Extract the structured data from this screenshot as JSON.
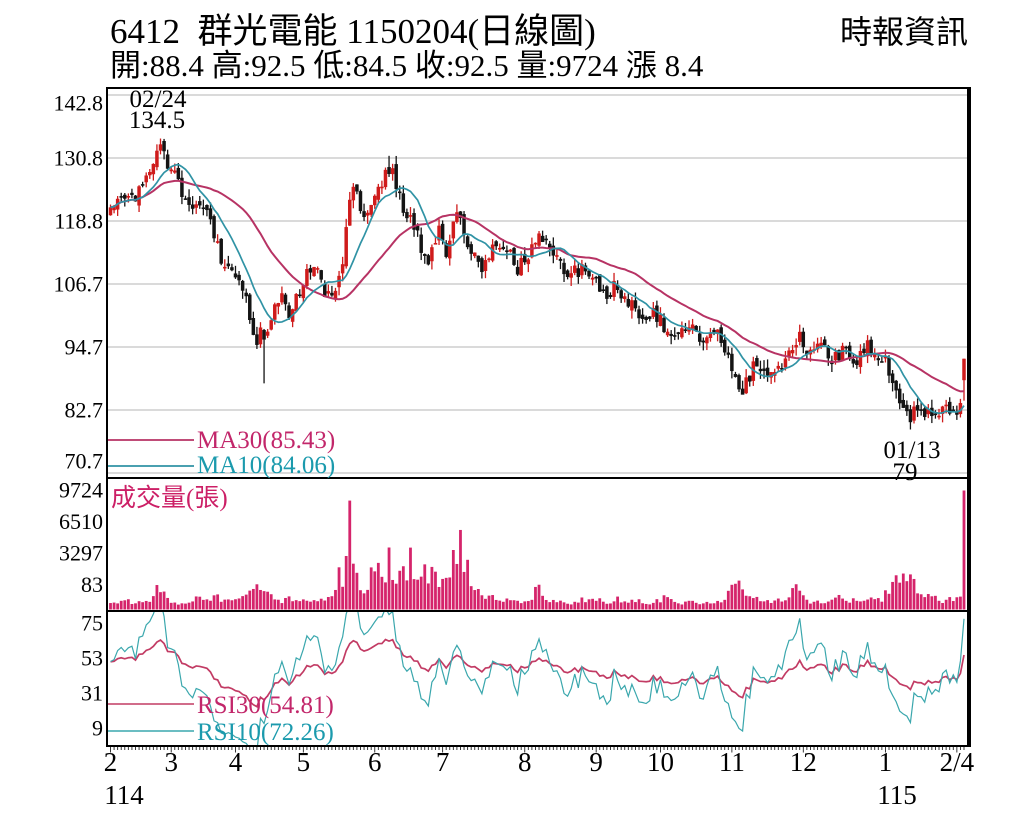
{
  "header": {
    "title": "6412  群光電能 1150204(日線圖)",
    "source": "時報資訊",
    "summary": "開:88.4 高:92.5 低:84.5 收:92.5 量:9724 漲 8.4"
  },
  "colors": {
    "up_candle": "#cf1b1b",
    "down_candle": "#141414",
    "ma30": "#b73364",
    "ma10": "#3093a5",
    "ma30_text": "#c2266a",
    "ma10_text": "#1b9aad",
    "volume_bar": "#d5246b",
    "volume_title": "#cc1f66",
    "rsi30": "#c23b64",
    "rsi10": "#3aa7ad",
    "grid": "#c4c4c4",
    "border": "#000000"
  },
  "chart_data": [
    {
      "type": "candlestick",
      "title": "6412 群光電能 1150204(日線圖)",
      "y_ticks": [
        142.8,
        130.8,
        118.8,
        106.7,
        94.7,
        82.7,
        70.7
      ],
      "x_axis": {
        "month_labels": [
          "2",
          "3",
          "4",
          "5",
          "6",
          "7",
          "8",
          "9",
          "10",
          "11",
          "12",
          "1",
          "2/4"
        ],
        "month_start_days": [
          0,
          17,
          35,
          54,
          74,
          93,
          116,
          136,
          154,
          174,
          194,
          217,
          237
        ],
        "total_days": 240,
        "year_labels": [
          {
            "text": "114",
            "under_month_index": 0
          },
          {
            "text": "115",
            "under_month_index": 11
          }
        ]
      },
      "overlays": [
        {
          "name": "MA30",
          "legend": "MA30(85.43)",
          "window": 30
        },
        {
          "name": "MA10",
          "legend": "MA10(84.06)",
          "window": 10
        }
      ],
      "annotations": [
        {
          "date": "02/24",
          "price": "134.5",
          "day": 14
        },
        {
          "date": "01/13",
          "price": "79",
          "day": 224
        }
      ],
      "last_candle": {
        "open": 88.4,
        "high": 92.5,
        "low": 84.5,
        "close": 92.5
      },
      "high_overrides": {
        "14": 134.5,
        "78": 131.2,
        "193": 99.0,
        "212": 97.0
      },
      "low_overrides": {
        "43": 87.8,
        "177": 86.0,
        "224": 79.0
      },
      "price_anchors": [
        [
          0,
          122
        ],
        [
          3,
          124.5
        ],
        [
          6,
          123
        ],
        [
          9,
          126
        ],
        [
          12,
          128.5
        ],
        [
          14,
          133
        ],
        [
          16,
          129.5
        ],
        [
          18,
          127
        ],
        [
          20,
          123.5
        ],
        [
          22,
          121
        ],
        [
          24,
          123
        ],
        [
          26,
          122
        ],
        [
          28,
          118
        ],
        [
          30,
          113.5
        ],
        [
          32,
          110
        ],
        [
          34,
          108
        ],
        [
          36,
          106.5
        ],
        [
          38,
          103
        ],
        [
          40,
          98.5
        ],
        [
          41,
          96
        ],
        [
          42,
          97.5
        ],
        [
          43,
          95.5
        ],
        [
          44,
          99
        ],
        [
          46,
          102
        ],
        [
          48,
          103.5
        ],
        [
          50,
          101
        ],
        [
          52,
          104
        ],
        [
          54,
          107.5
        ],
        [
          56,
          110
        ],
        [
          58,
          108.5
        ],
        [
          60,
          105
        ],
        [
          62,
          104.5
        ],
        [
          64,
          108
        ],
        [
          65,
          112
        ],
        [
          66,
          118
        ],
        [
          67,
          123.5
        ],
        [
          68,
          125.5
        ],
        [
          69,
          123
        ],
        [
          70,
          119.5
        ],
        [
          71,
          118.5
        ],
        [
          72,
          120
        ],
        [
          73,
          121.5
        ],
        [
          74,
          122.5
        ],
        [
          75,
          125
        ],
        [
          76,
          126.5
        ],
        [
          77,
          127.5
        ],
        [
          78,
          129
        ],
        [
          79,
          128
        ],
        [
          80,
          126
        ],
        [
          81,
          124
        ],
        [
          82,
          121.5
        ],
        [
          83,
          120
        ],
        [
          84,
          119
        ],
        [
          85,
          117.5
        ],
        [
          86,
          116
        ],
        [
          87,
          113.5
        ],
        [
          88,
          111.5
        ],
        [
          89,
          111
        ],
        [
          90,
          113
        ],
        [
          91,
          115.5
        ],
        [
          92,
          117
        ],
        [
          93,
          114.5
        ],
        [
          94,
          113
        ],
        [
          95,
          116
        ],
        [
          96,
          119.5
        ],
        [
          97,
          121
        ],
        [
          98,
          120
        ],
        [
          99,
          117.5
        ],
        [
          100,
          115
        ],
        [
          101,
          113.5
        ],
        [
          102,
          112
        ],
        [
          104,
          110.5
        ],
        [
          106,
          113
        ],
        [
          108,
          114.5
        ],
        [
          110,
          113
        ],
        [
          112,
          112
        ],
        [
          114,
          109.5
        ],
        [
          116,
          111
        ],
        [
          118,
          113.5
        ],
        [
          120,
          116
        ],
        [
          121,
          115
        ],
        [
          123,
          113
        ],
        [
          126,
          110.5
        ],
        [
          129,
          108.5
        ],
        [
          131,
          109.5
        ],
        [
          133,
          110.5
        ],
        [
          135,
          108
        ],
        [
          136,
          106.5
        ],
        [
          138,
          104.5
        ],
        [
          140,
          105.5
        ],
        [
          142,
          106.5
        ],
        [
          144,
          104
        ],
        [
          146,
          102.5
        ],
        [
          148,
          100.5
        ],
        [
          150,
          100
        ],
        [
          152,
          102
        ],
        [
          154,
          100
        ],
        [
          156,
          97.5
        ],
        [
          158,
          96
        ],
        [
          160,
          98.5
        ],
        [
          162,
          99.5
        ],
        [
          164,
          97
        ],
        [
          166,
          96.5
        ],
        [
          168,
          97.5
        ],
        [
          170,
          97
        ],
        [
          172,
          94.5
        ],
        [
          174,
          91.5
        ],
        [
          175,
          89.5
        ],
        [
          176,
          88
        ],
        [
          177,
          87
        ],
        [
          178,
          88.5
        ],
        [
          180,
          90.5
        ],
        [
          182,
          89.5
        ],
        [
          184,
          88.5
        ],
        [
          186,
          90
        ],
        [
          188,
          91.5
        ],
        [
          190,
          93
        ],
        [
          192,
          95
        ],
        [
          193,
          96.5
        ],
        [
          194,
          94.5
        ],
        [
          196,
          93.5
        ],
        [
          198,
          95
        ],
        [
          200,
          94
        ],
        [
          202,
          92.5
        ],
        [
          204,
          93.5
        ],
        [
          206,
          94
        ],
        [
          208,
          92
        ],
        [
          210,
          93
        ],
        [
          212,
          95.5
        ],
        [
          214,
          94
        ],
        [
          216,
          93
        ],
        [
          217,
          92.5
        ],
        [
          218,
          90
        ],
        [
          219,
          87.5
        ],
        [
          220,
          85
        ],
        [
          221,
          83
        ],
        [
          222,
          82
        ],
        [
          223,
          81.5
        ],
        [
          224,
          80.5
        ],
        [
          225,
          82.5
        ],
        [
          226,
          83.5
        ],
        [
          227,
          82.5
        ],
        [
          228,
          82
        ],
        [
          229,
          81.5
        ],
        [
          230,
          82.5
        ],
        [
          231,
          83
        ],
        [
          232,
          82
        ],
        [
          233,
          82.5
        ],
        [
          234,
          83.5
        ],
        [
          235,
          82.5
        ],
        [
          236,
          83
        ],
        [
          237,
          82.5
        ],
        [
          238,
          85
        ],
        [
          239,
          92.5
        ]
      ]
    },
    {
      "type": "bar",
      "title": "成交量(張)",
      "y_ticks": [
        9724,
        6510,
        3297,
        83
      ],
      "volume_overrides": {
        "13": 2000,
        "67": 8900,
        "98": 6500,
        "239": 9724
      },
      "volume_anchors": [
        [
          0,
          450
        ],
        [
          4,
          700
        ],
        [
          8,
          550
        ],
        [
          12,
          900
        ],
        [
          13,
          2000
        ],
        [
          14,
          1800
        ],
        [
          16,
          800
        ],
        [
          18,
          500
        ],
        [
          22,
          700
        ],
        [
          26,
          1100
        ],
        [
          28,
          800
        ],
        [
          30,
          1000
        ],
        [
          32,
          700
        ],
        [
          34,
          600
        ],
        [
          36,
          800
        ],
        [
          38,
          1200
        ],
        [
          40,
          1600
        ],
        [
          42,
          1900
        ],
        [
          44,
          1500
        ],
        [
          46,
          1000
        ],
        [
          48,
          700
        ],
        [
          50,
          900
        ],
        [
          52,
          600
        ],
        [
          54,
          700
        ],
        [
          56,
          900
        ],
        [
          58,
          600
        ],
        [
          60,
          800
        ],
        [
          62,
          1200
        ],
        [
          64,
          2900
        ],
        [
          65,
          2600
        ],
        [
          66,
          3400
        ],
        [
          67,
          8900
        ],
        [
          68,
          3800
        ],
        [
          69,
          2400
        ],
        [
          70,
          1700
        ],
        [
          72,
          2100
        ],
        [
          74,
          3300
        ],
        [
          75,
          2900
        ],
        [
          76,
          3600
        ],
        [
          77,
          3200
        ],
        [
          78,
          4100
        ],
        [
          79,
          3500
        ],
        [
          80,
          3000
        ],
        [
          81,
          3700
        ],
        [
          82,
          2800
        ],
        [
          83,
          3300
        ],
        [
          84,
          4300
        ],
        [
          85,
          3600
        ],
        [
          86,
          2500
        ],
        [
          87,
          3900
        ],
        [
          88,
          3100
        ],
        [
          89,
          2300
        ],
        [
          90,
          2700
        ],
        [
          92,
          2200
        ],
        [
          93,
          2000
        ],
        [
          94,
          2400
        ],
        [
          95,
          3100
        ],
        [
          96,
          3700
        ],
        [
          97,
          2900
        ],
        [
          98,
          6500
        ],
        [
          99,
          4300
        ],
        [
          100,
          3400
        ],
        [
          101,
          2200
        ],
        [
          102,
          1500
        ],
        [
          104,
          1100
        ],
        [
          106,
          1400
        ],
        [
          108,
          900
        ],
        [
          110,
          700
        ],
        [
          112,
          800
        ],
        [
          114,
          600
        ],
        [
          116,
          700
        ],
        [
          118,
          900
        ],
        [
          120,
          1900
        ],
        [
          122,
          800
        ],
        [
          124,
          600
        ],
        [
          126,
          700
        ],
        [
          128,
          500
        ],
        [
          130,
          600
        ],
        [
          132,
          900
        ],
        [
          134,
          700
        ],
        [
          136,
          900
        ],
        [
          138,
          700
        ],
        [
          140,
          600
        ],
        [
          142,
          800
        ],
        [
          144,
          600
        ],
        [
          146,
          900
        ],
        [
          148,
          700
        ],
        [
          150,
          500
        ],
        [
          152,
          600
        ],
        [
          154,
          800
        ],
        [
          156,
          1000
        ],
        [
          158,
          700
        ],
        [
          160,
          600
        ],
        [
          162,
          900
        ],
        [
          164,
          600
        ],
        [
          166,
          500
        ],
        [
          168,
          700
        ],
        [
          170,
          600
        ],
        [
          172,
          900
        ],
        [
          174,
          1700
        ],
        [
          175,
          2100
        ],
        [
          176,
          1800
        ],
        [
          177,
          1400
        ],
        [
          178,
          1200
        ],
        [
          180,
          900
        ],
        [
          182,
          700
        ],
        [
          184,
          800
        ],
        [
          186,
          600
        ],
        [
          188,
          900
        ],
        [
          190,
          1300
        ],
        [
          192,
          1600
        ],
        [
          193,
          1400
        ],
        [
          194,
          1000
        ],
        [
          196,
          700
        ],
        [
          198,
          800
        ],
        [
          200,
          600
        ],
        [
          202,
          700
        ],
        [
          204,
          900
        ],
        [
          206,
          600
        ],
        [
          208,
          700
        ],
        [
          210,
          800
        ],
        [
          212,
          1100
        ],
        [
          214,
          700
        ],
        [
          216,
          800
        ],
        [
          217,
          1200
        ],
        [
          218,
          1600
        ],
        [
          219,
          2100
        ],
        [
          220,
          2500
        ],
        [
          221,
          2900
        ],
        [
          222,
          2400
        ],
        [
          223,
          2000
        ],
        [
          224,
          2600
        ],
        [
          225,
          2200
        ],
        [
          226,
          1700
        ],
        [
          227,
          1400
        ],
        [
          228,
          1200
        ],
        [
          229,
          1000
        ],
        [
          230,
          900
        ],
        [
          232,
          800
        ],
        [
          234,
          700
        ],
        [
          236,
          900
        ],
        [
          237,
          800
        ],
        [
          238,
          1400
        ],
        [
          239,
          9724
        ]
      ]
    },
    {
      "type": "line",
      "y_ticks": [
        75,
        53,
        31,
        9
      ],
      "series": [
        {
          "name": "RSI30",
          "legend": "RSI30(54.81)",
          "period": 30
        },
        {
          "name": "RSI10",
          "legend": "RSI10(72.26)",
          "period": 10
        }
      ]
    }
  ]
}
